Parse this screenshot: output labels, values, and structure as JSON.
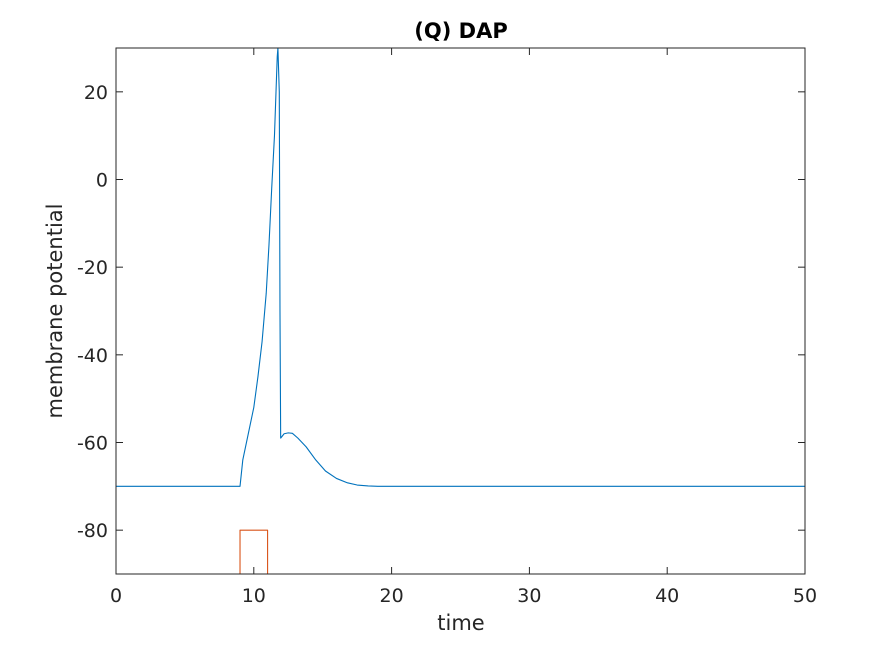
{
  "chart_data": {
    "type": "line",
    "title": "(Q) DAP",
    "xlabel": "time",
    "ylabel": "membrane potential",
    "xlim": [
      0,
      50
    ],
    "ylim": [
      -90,
      30
    ],
    "xticks": [
      0,
      10,
      20,
      30,
      40,
      50
    ],
    "xtick_labels": [
      "0",
      "10",
      "20",
      "30",
      "40",
      "50"
    ],
    "yticks": [
      -80,
      -60,
      -40,
      -20,
      0,
      20
    ],
    "ytick_labels": [
      "-80",
      "-60",
      "-40",
      "-20",
      "0",
      "20"
    ],
    "grid": false,
    "legend": "none",
    "series": [
      {
        "color": "#0072BD",
        "x": [
          0,
          9.0,
          9.2,
          9.6,
          10.0,
          10.3,
          10.6,
          10.9,
          11.1,
          11.3,
          11.5,
          11.7,
          11.75,
          11.85,
          11.9,
          11.95,
          12.2,
          12.5,
          12.8,
          13.2,
          13.8,
          14.5,
          15.2,
          16.0,
          16.8,
          17.5,
          18.3,
          19.0,
          20.0,
          50
        ],
        "y": [
          -70,
          -70,
          -64,
          -58,
          -52,
          -45,
          -37,
          -26,
          -15,
          -2,
          10,
          28,
          30,
          20,
          -30,
          -59,
          -58,
          -57.8,
          -57.9,
          -59,
          -61,
          -64,
          -66.5,
          -68.2,
          -69.2,
          -69.7,
          -69.9,
          -70,
          -70,
          -70
        ]
      },
      {
        "color": "#D95319",
        "x": [
          0,
          9.0,
          9.0,
          11.0,
          11.0,
          50
        ],
        "y": [
          -90,
          -90,
          -80,
          -80,
          -90,
          -90
        ]
      }
    ]
  }
}
